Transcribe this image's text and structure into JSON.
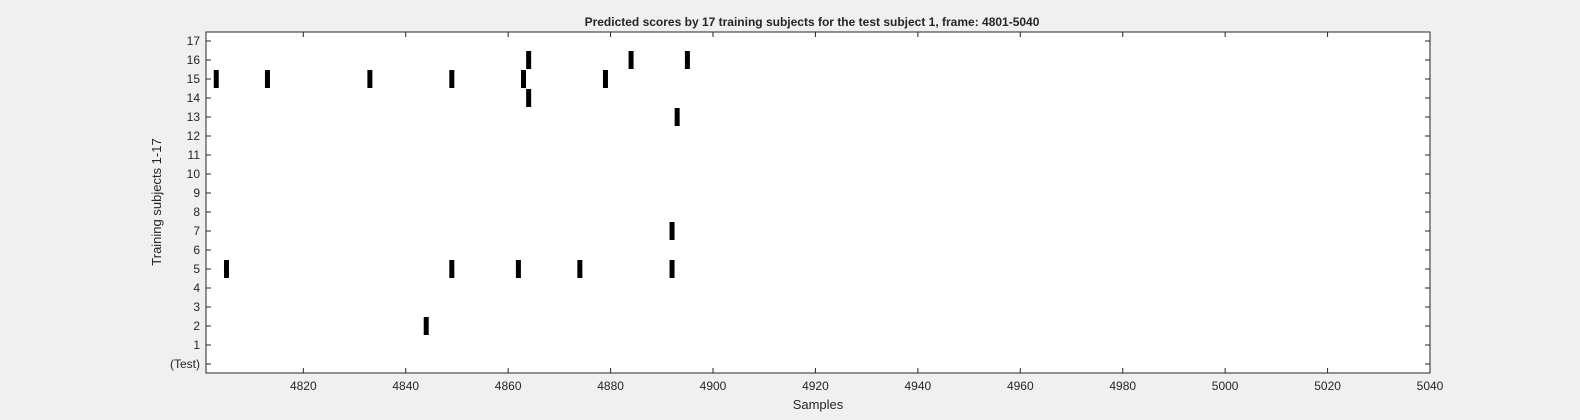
{
  "chart_data": {
    "type": "scatter",
    "title": "Predicted scores by 17 training subjects for the test subject 1, frame: 4801-5040",
    "xlabel": "Samples",
    "ylabel": "Training subjects 1-17",
    "xlim": [
      4801,
      5040
    ],
    "ylim": [
      0,
      17
    ],
    "xticks": [
      4820,
      4840,
      4860,
      4880,
      4900,
      4920,
      4940,
      4960,
      4980,
      5000,
      5020,
      5040
    ],
    "yticks": [
      "(Test)",
      "1",
      "2",
      "3",
      "4",
      "5",
      "6",
      "7",
      "8",
      "9",
      "10",
      "11",
      "12",
      "13",
      "14",
      "15",
      "16",
      "17"
    ],
    "grid": false,
    "marker": "vertical-bar",
    "marker_color": "#000000",
    "series": [
      {
        "subject": 2,
        "x": [
          4844
        ]
      },
      {
        "subject": 5,
        "x": [
          4805,
          4849,
          4862,
          4874,
          4892
        ]
      },
      {
        "subject": 7,
        "x": [
          4892
        ]
      },
      {
        "subject": 13,
        "x": [
          4893
        ]
      },
      {
        "subject": 14,
        "x": [
          4864
        ]
      },
      {
        "subject": 15,
        "x": [
          4803,
          4813,
          4833,
          4849,
          4863,
          4879
        ]
      },
      {
        "subject": 16,
        "x": [
          4864,
          4884,
          4895
        ]
      }
    ]
  }
}
